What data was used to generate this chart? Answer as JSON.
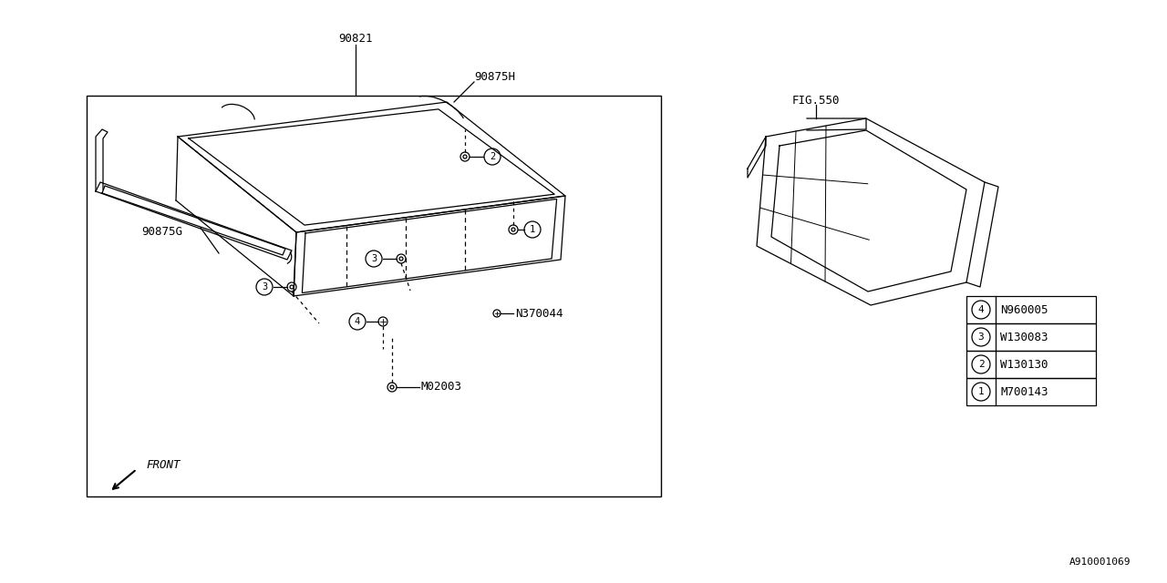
{
  "bg_color": "#ffffff",
  "line_color": "#000000",
  "callout_items": [
    {
      "num": "1",
      "code": "M700143"
    },
    {
      "num": "2",
      "code": "W130130"
    },
    {
      "num": "3",
      "code": "W130083"
    },
    {
      "num": "4",
      "code": "N960005"
    }
  ],
  "watermark": "A910001069"
}
